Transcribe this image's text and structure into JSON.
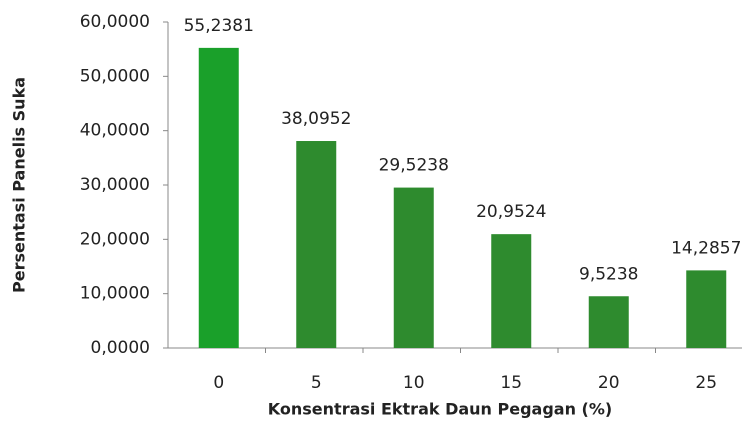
{
  "chart_data": {
    "type": "bar",
    "xlabel": "Konsentrasi Ektrak Daun Pegagan (%)",
    "ylabel": "Persentasi Panelis Suka",
    "categories": [
      "0",
      "5",
      "10",
      "15",
      "20",
      "25"
    ],
    "values": [
      55.2381,
      38.0952,
      29.5238,
      20.9524,
      9.5238,
      14.2857
    ],
    "value_labels": [
      "55,2381",
      "38,0952",
      "29,5238",
      "20,9524",
      "9,5238",
      "14,2857"
    ],
    "colors": [
      "#1aa02a",
      "#2e8b2e",
      "#2e8b2e",
      "#2e8b2e",
      "#2e8b2e",
      "#2e8b2e"
    ],
    "ylim": [
      0,
      60
    ],
    "yticks": [
      {
        "value": 0,
        "label": "0,0000"
      },
      {
        "value": 10,
        "label": "10,0000"
      },
      {
        "value": 20,
        "label": "20,0000"
      },
      {
        "value": 30,
        "label": "30,0000"
      },
      {
        "value": 40,
        "label": "40,0000"
      },
      {
        "value": 50,
        "label": "50,0000"
      },
      {
        "value": 60,
        "label": "60,0000"
      }
    ],
    "grid": false
  }
}
